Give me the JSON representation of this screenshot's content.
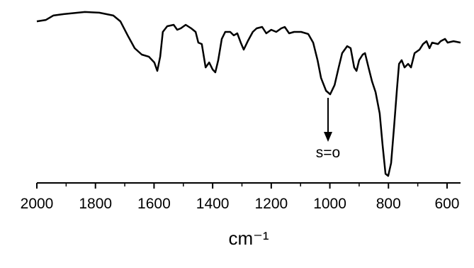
{
  "chart_data": {
    "type": "line",
    "x_label": "cm⁻¹",
    "annotation": "s=o",
    "xlim": [
      2000,
      554
    ],
    "ylim": [
      0,
      100
    ],
    "xticks": [
      2000,
      1800,
      1600,
      1400,
      1200,
      1000,
      800,
      600
    ],
    "xminorticks": [
      1900,
      1700,
      1500,
      1300,
      1100,
      900,
      700
    ],
    "series": [
      {
        "color": "#000000",
        "x": [
          2000,
          1969,
          1944,
          1908,
          1884,
          1836,
          1787,
          1739,
          1715,
          1690,
          1666,
          1642,
          1618,
          1599,
          1589,
          1579,
          1570,
          1555,
          1533,
          1521,
          1509,
          1492,
          1473,
          1458,
          1449,
          1437,
          1424,
          1412,
          1400,
          1391,
          1381,
          1369,
          1357,
          1340,
          1328,
          1316,
          1304,
          1294,
          1279,
          1263,
          1250,
          1231,
          1217,
          1200,
          1183,
          1166,
          1154,
          1139,
          1122,
          1098,
          1074,
          1057,
          1042,
          1030,
          1013,
          999,
          984,
          970,
          958,
          941,
          929,
          917,
          909,
          900,
          888,
          880,
          868,
          856,
          844,
          830,
          820,
          810,
          801,
          791,
          781,
          771,
          764,
          755,
          745,
          733,
          723,
          711,
          694,
          682,
          670,
          660,
          651,
          631,
          622,
          607,
          598,
          578,
          554
        ],
        "values": [
          91.9,
          92.7,
          95.2,
          96.0,
          96.4,
          97.2,
          96.8,
          95.2,
          91.9,
          83.9,
          76.6,
          73.0,
          71.8,
          68.5,
          63.7,
          71.8,
          85.9,
          89.1,
          89.9,
          87.1,
          87.9,
          89.9,
          87.9,
          85.9,
          79.8,
          79.0,
          65.7,
          68.5,
          64.5,
          62.9,
          69.8,
          81.9,
          85.9,
          85.9,
          83.9,
          85.1,
          79.8,
          75.8,
          81.0,
          85.9,
          87.9,
          88.7,
          85.1,
          87.1,
          85.9,
          87.9,
          88.7,
          85.1,
          85.9,
          85.9,
          84.7,
          79.8,
          69.8,
          59.7,
          52.4,
          50.4,
          55.6,
          65.7,
          73.8,
          77.8,
          76.6,
          65.7,
          63.7,
          69.8,
          73.0,
          73.8,
          65.7,
          57.7,
          51.6,
          39.5,
          21.4,
          5.2,
          4.0,
          11.3,
          31.5,
          53.6,
          67.7,
          69.8,
          65.7,
          67.7,
          65.7,
          73.8,
          75.8,
          79.0,
          80.6,
          76.6,
          79.8,
          79.0,
          80.6,
          81.9,
          79.8,
          80.6,
          79.8
        ]
      }
    ]
  }
}
